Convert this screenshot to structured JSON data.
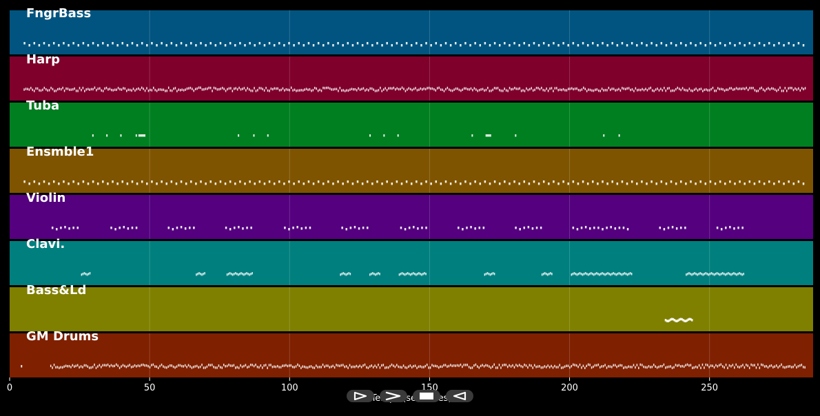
{
  "chart_data": {
    "type": "piano-roll",
    "xlabel": "Temps (secondes)",
    "xlim": [
      0,
      287
    ],
    "xticks": [
      0,
      50,
      100,
      150,
      200,
      250
    ],
    "grid": true,
    "tracks": [
      {
        "name": "FngrBass",
        "color": "#00547f",
        "segments": [
          {
            "start": 5,
            "end": 284,
            "pattern": "pairs",
            "period": 1.75
          }
        ]
      },
      {
        "name": "Harp",
        "color": "#7f002b",
        "segments": [
          {
            "start": 5,
            "end": 284,
            "pattern": "dense",
            "period": 0.6
          }
        ]
      },
      {
        "name": "Tuba",
        "color": "#007f20",
        "notes": [
          29.5,
          34.5,
          39.5,
          45,
          46,
          46.5,
          47,
          47.5,
          48,
          81.5,
          87,
          92,
          128.5,
          133.5,
          138.5,
          165,
          170,
          170.5,
          171,
          171.5,
          180.5,
          212,
          217.5
        ]
      },
      {
        "name": "Ensmble1",
        "color": "#7f5400",
        "segments": [
          {
            "start": 5,
            "end": 284,
            "pattern": "pairs",
            "period": 1.75
          }
        ]
      },
      {
        "name": "Violin",
        "color": "#54007f",
        "segments": [
          {
            "start": 15,
            "end": 24,
            "pattern": "phrase",
            "period": 1.5
          },
          {
            "start": 36,
            "end": 45,
            "pattern": "phrase",
            "period": 1.5
          },
          {
            "start": 56.5,
            "end": 65.5,
            "pattern": "phrase",
            "period": 1.5
          },
          {
            "start": 77,
            "end": 86,
            "pattern": "phrase",
            "period": 1.5
          },
          {
            "start": 98,
            "end": 107,
            "pattern": "phrase",
            "period": 1.5
          },
          {
            "start": 118.5,
            "end": 127.5,
            "pattern": "phrase",
            "period": 1.5
          },
          {
            "start": 139.5,
            "end": 148.5,
            "pattern": "phrase",
            "period": 1.5
          },
          {
            "start": 160,
            "end": 169,
            "pattern": "phrase",
            "period": 1.5
          },
          {
            "start": 180.5,
            "end": 189.5,
            "pattern": "phrase",
            "period": 1.5
          },
          {
            "start": 201,
            "end": 221,
            "pattern": "phrase",
            "period": 1.5
          },
          {
            "start": 232,
            "end": 241,
            "pattern": "phrase",
            "period": 1.5
          },
          {
            "start": 252.5,
            "end": 261.5,
            "pattern": "phrase",
            "period": 1.5
          }
        ]
      },
      {
        "name": "Clavi.",
        "color": "#007f7f",
        "segments": [
          {
            "start": 25.5,
            "end": 28.5,
            "pattern": "run",
            "period": 0.5
          },
          {
            "start": 66.5,
            "end": 69.5,
            "pattern": "run",
            "period": 0.5
          },
          {
            "start": 77.5,
            "end": 86.5,
            "pattern": "run",
            "period": 0.5
          },
          {
            "start": 118,
            "end": 121.5,
            "pattern": "run",
            "period": 0.5
          },
          {
            "start": 128.5,
            "end": 132,
            "pattern": "run",
            "period": 0.5
          },
          {
            "start": 139,
            "end": 148.5,
            "pattern": "run",
            "period": 0.5
          },
          {
            "start": 169.5,
            "end": 173,
            "pattern": "run",
            "period": 0.5
          },
          {
            "start": 190,
            "end": 193.5,
            "pattern": "run",
            "period": 0.5
          },
          {
            "start": 200.5,
            "end": 222,
            "pattern": "run",
            "period": 0.5
          },
          {
            "start": 241.5,
            "end": 262,
            "pattern": "run",
            "period": 0.5
          }
        ]
      },
      {
        "name": "Bass&Ld",
        "color": "#7f7f00",
        "segments": [
          {
            "start": 234,
            "end": 243.5,
            "pattern": "wave",
            "period": 0.45
          }
        ]
      },
      {
        "name": "GM Drums",
        "color": "#7f2000",
        "notes": [
          4
        ],
        "segments": [
          {
            "start": 14.5,
            "end": 284,
            "pattern": "dense",
            "period": 0.6
          }
        ]
      }
    ]
  },
  "controls": {
    "play_label": "play",
    "next_label": "next",
    "stop_label": "stop",
    "prev_label": "previous"
  }
}
